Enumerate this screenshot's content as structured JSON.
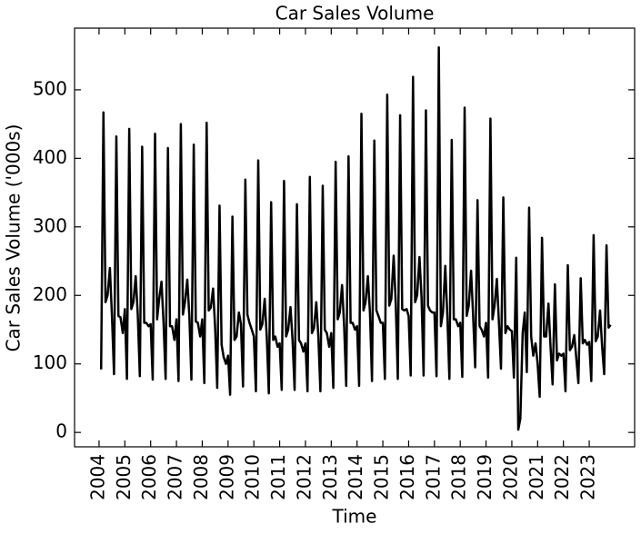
{
  "chart_data": {
    "type": "line",
    "title": "Car Sales Volume",
    "xlabel": "Time",
    "ylabel": "Car Sales Volume ('000s)",
    "color": "#000000",
    "x": [
      2004.08,
      2004.17,
      2004.25,
      2004.33,
      2004.42,
      2004.5,
      2004.58,
      2004.67,
      2004.75,
      2004.83,
      2004.92,
      2005,
      2005.08,
      2005.17,
      2005.25,
      2005.33,
      2005.42,
      2005.5,
      2005.58,
      2005.67,
      2005.75,
      2005.83,
      2005.92,
      2006,
      2006.08,
      2006.17,
      2006.25,
      2006.33,
      2006.42,
      2006.5,
      2006.58,
      2006.67,
      2006.75,
      2006.83,
      2006.92,
      2007,
      2007.08,
      2007.17,
      2007.25,
      2007.33,
      2007.42,
      2007.5,
      2007.58,
      2007.67,
      2007.75,
      2007.83,
      2007.92,
      2008,
      2008.08,
      2008.17,
      2008.25,
      2008.33,
      2008.42,
      2008.5,
      2008.58,
      2008.67,
      2008.75,
      2008.83,
      2008.92,
      2009,
      2009.08,
      2009.17,
      2009.25,
      2009.33,
      2009.42,
      2009.5,
      2009.58,
      2009.67,
      2009.75,
      2009.83,
      2009.92,
      2010,
      2010.08,
      2010.17,
      2010.25,
      2010.33,
      2010.42,
      2010.5,
      2010.58,
      2010.67,
      2010.75,
      2010.83,
      2010.92,
      2011,
      2011.08,
      2011.17,
      2011.25,
      2011.33,
      2011.42,
      2011.5,
      2011.58,
      2011.67,
      2011.75,
      2011.83,
      2011.92,
      2012,
      2012.08,
      2012.17,
      2012.25,
      2012.33,
      2012.42,
      2012.5,
      2012.58,
      2012.67,
      2012.75,
      2012.83,
      2012.92,
      2013,
      2013.08,
      2013.17,
      2013.25,
      2013.33,
      2013.42,
      2013.5,
      2013.58,
      2013.67,
      2013.75,
      2013.83,
      2013.92,
      2014,
      2014.08,
      2014.17,
      2014.25,
      2014.33,
      2014.42,
      2014.5,
      2014.58,
      2014.67,
      2014.75,
      2014.83,
      2014.92,
      2015,
      2015.08,
      2015.17,
      2015.25,
      2015.33,
      2015.42,
      2015.5,
      2015.58,
      2015.67,
      2015.75,
      2015.83,
      2015.92,
      2016,
      2016.08,
      2016.17,
      2016.25,
      2016.33,
      2016.42,
      2016.5,
      2016.58,
      2016.67,
      2016.75,
      2016.83,
      2016.92,
      2017,
      2017.08,
      2017.17,
      2017.25,
      2017.33,
      2017.42,
      2017.5,
      2017.58,
      2017.67,
      2017.75,
      2017.83,
      2017.92,
      2018,
      2018.08,
      2018.17,
      2018.25,
      2018.33,
      2018.42,
      2018.5,
      2018.58,
      2018.67,
      2018.75,
      2018.83,
      2018.92,
      2019,
      2019.08,
      2019.17,
      2019.25,
      2019.33,
      2019.42,
      2019.5,
      2019.58,
      2019.67,
      2019.75,
      2019.83,
      2019.92,
      2020,
      2020.08,
      2020.17,
      2020.25,
      2020.33,
      2020.42,
      2020.5,
      2020.58,
      2020.67,
      2020.75,
      2020.83,
      2020.92,
      2021,
      2021.08,
      2021.17,
      2021.25,
      2021.33,
      2021.42,
      2021.5,
      2021.58,
      2021.67,
      2021.75,
      2021.83,
      2021.92,
      2022,
      2022.08,
      2022.17,
      2022.25,
      2022.33,
      2022.42,
      2022.5,
      2022.58,
      2022.67,
      2022.75,
      2022.83,
      2022.92,
      2023,
      2023.08,
      2023.17,
      2023.25,
      2023.33,
      2023.42,
      2023.5,
      2023.58,
      2023.67,
      2023.75,
      2023.83
    ],
    "values": [
      92,
      467,
      190,
      200,
      240,
      170,
      85,
      432,
      170,
      168,
      145,
      180,
      78,
      443,
      180,
      190,
      228,
      172,
      82,
      417,
      160,
      160,
      155,
      158,
      77,
      436,
      165,
      195,
      220,
      160,
      78,
      415,
      155,
      155,
      135,
      165,
      75,
      450,
      172,
      190,
      223,
      170,
      77,
      420,
      162,
      160,
      140,
      165,
      72,
      452,
      178,
      182,
      210,
      152,
      65,
      331,
      128,
      110,
      100,
      112,
      55,
      315,
      135,
      140,
      175,
      158,
      67,
      369,
      172,
      160,
      150,
      140,
      60,
      397,
      150,
      158,
      195,
      140,
      57,
      336,
      135,
      140,
      125,
      130,
      62,
      367,
      140,
      150,
      183,
      135,
      62,
      333,
      135,
      130,
      118,
      130,
      60,
      373,
      145,
      152,
      190,
      140,
      60,
      360,
      150,
      145,
      125,
      145,
      65,
      395,
      165,
      175,
      215,
      155,
      68,
      403,
      160,
      160,
      150,
      155,
      68,
      465,
      178,
      190,
      228,
      175,
      75,
      426,
      178,
      170,
      160,
      160,
      78,
      493,
      185,
      195,
      258,
      188,
      78,
      463,
      180,
      178,
      180,
      170,
      83,
      519,
      190,
      200,
      256,
      197,
      83,
      470,
      185,
      178,
      175,
      175,
      82,
      562,
      155,
      175,
      243,
      170,
      78,
      427,
      165,
      165,
      155,
      160,
      81,
      474,
      170,
      185,
      236,
      170,
      95,
      339,
      155,
      150,
      140,
      160,
      80,
      458,
      165,
      185,
      224,
      160,
      93,
      343,
      145,
      155,
      150,
      148,
      80,
      255,
      4,
      20,
      145,
      175,
      88,
      328,
      140,
      112,
      130,
      100,
      52,
      284,
      140,
      140,
      188,
      125,
      70,
      216,
      105,
      115,
      112,
      115,
      60,
      244,
      120,
      125,
      142,
      108,
      72,
      225,
      130,
      135,
      128,
      132,
      75,
      288,
      133,
      140,
      178,
      125,
      85,
      273,
      153,
      157
    ],
    "xlim": [
      2003.05,
      2024.76
    ],
    "ylim": [
      -21,
      590
    ],
    "xticks": [
      2004,
      2005,
      2006,
      2007,
      2008,
      2009,
      2010,
      2011,
      2012,
      2013,
      2014,
      2015,
      2016,
      2017,
      2018,
      2019,
      2020,
      2021,
      2022,
      2023
    ],
    "yticks": [
      0,
      100,
      200,
      300,
      400,
      500
    ],
    "grid": false
  }
}
